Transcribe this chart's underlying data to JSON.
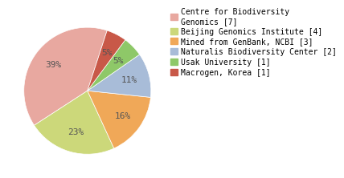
{
  "labels": [
    "Centre for Biodiversity\nGenomics [7]",
    "Beijing Genomics Institute [4]",
    "Mined from GenBank, NCBI [3]",
    "Naturalis Biodiversity Center [2]",
    "Usak University [1]",
    "Macrogen, Korea [1]"
  ],
  "values": [
    38,
    22,
    16,
    11,
    5,
    5
  ],
  "colors": [
    "#e8a8a0",
    "#ccd87a",
    "#f0a858",
    "#a8bcd8",
    "#8ec868",
    "#c85848"
  ],
  "startangle": 72,
  "legend_fontsize": 7,
  "pct_fontsize": 8,
  "pct_color": "#555555"
}
